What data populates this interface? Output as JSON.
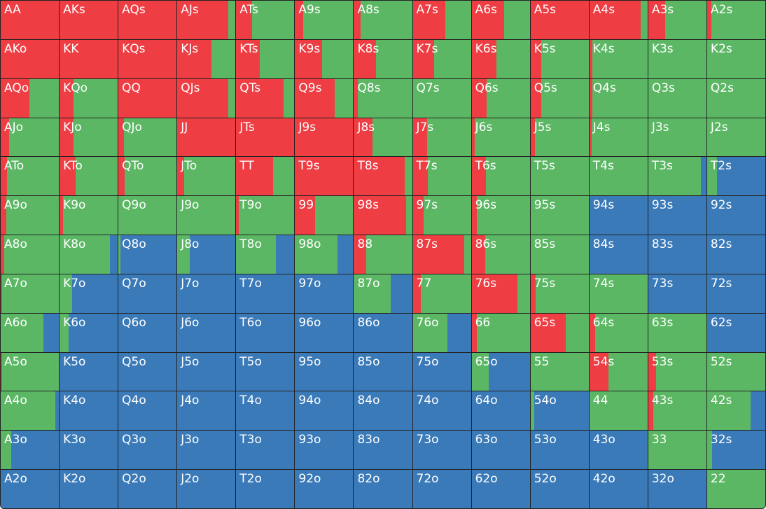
{
  "colors": {
    "raise": "#ee3d43",
    "call": "#5cb765",
    "fold": "#3b7ab8"
  },
  "hands": [
    {
      "label": "AA",
      "raise": 1.0,
      "call": 0.0
    },
    {
      "label": "AKs",
      "raise": 1.0,
      "call": 0.0
    },
    {
      "label": "AQs",
      "raise": 1.0,
      "call": 0.0
    },
    {
      "label": "AJs",
      "raise": 0.88,
      "call": 0.12
    },
    {
      "label": "ATs",
      "raise": 0.27,
      "call": 0.73
    },
    {
      "label": "A9s",
      "raise": 0.14,
      "call": 0.86
    },
    {
      "label": "A8s",
      "raise": 0.11,
      "call": 0.89
    },
    {
      "label": "A7s",
      "raise": 0.56,
      "call": 0.44
    },
    {
      "label": "A6s",
      "raise": 0.56,
      "call": 0.44
    },
    {
      "label": "A5s",
      "raise": 1.0,
      "call": 0.0
    },
    {
      "label": "A4s",
      "raise": 0.88,
      "call": 0.12
    },
    {
      "label": "A3s",
      "raise": 0.29,
      "call": 0.71
    },
    {
      "label": "A2s",
      "raise": 0.07,
      "call": 0.93
    },
    {
      "label": "AKo",
      "raise": 1.0,
      "call": 0.0
    },
    {
      "label": "KK",
      "raise": 1.0,
      "call": 0.0
    },
    {
      "label": "KQs",
      "raise": 1.0,
      "call": 0.0
    },
    {
      "label": "KJs",
      "raise": 0.59,
      "call": 0.41
    },
    {
      "label": "KTs",
      "raise": 0.4,
      "call": 0.6
    },
    {
      "label": "K9s",
      "raise": 0.46,
      "call": 0.54
    },
    {
      "label": "K8s",
      "raise": 0.38,
      "call": 0.62
    },
    {
      "label": "K7s",
      "raise": 0.37,
      "call": 0.63
    },
    {
      "label": "K6s",
      "raise": 0.43,
      "call": 0.57
    },
    {
      "label": "K5s",
      "raise": 0.18,
      "call": 0.82
    },
    {
      "label": "K4s",
      "raise": 0.05,
      "call": 0.95
    },
    {
      "label": "K3s",
      "raise": 0.0,
      "call": 1.0
    },
    {
      "label": "K2s",
      "raise": 0.0,
      "call": 1.0
    },
    {
      "label": "AQo",
      "raise": 0.49,
      "call": 0.51
    },
    {
      "label": "KQo",
      "raise": 0.24,
      "call": 0.76
    },
    {
      "label": "QQ",
      "raise": 1.0,
      "call": 0.0
    },
    {
      "label": "QJs",
      "raise": 0.88,
      "call": 0.12
    },
    {
      "label": "QTs",
      "raise": 0.82,
      "call": 0.18
    },
    {
      "label": "Q9s",
      "raise": 0.68,
      "call": 0.32
    },
    {
      "label": "Q8s",
      "raise": 0.07,
      "call": 0.93
    },
    {
      "label": "Q7s",
      "raise": 0.0,
      "call": 1.0
    },
    {
      "label": "Q6s",
      "raise": 0.26,
      "call": 0.74
    },
    {
      "label": "Q5s",
      "raise": 0.18,
      "call": 0.82
    },
    {
      "label": "Q4s",
      "raise": 0.05,
      "call": 0.95
    },
    {
      "label": "Q3s",
      "raise": 0.0,
      "call": 1.0
    },
    {
      "label": "Q2s",
      "raise": 0.0,
      "call": 1.0
    },
    {
      "label": "AJo",
      "raise": 0.15,
      "call": 0.85
    },
    {
      "label": "KJo",
      "raise": 0.24,
      "call": 0.76
    },
    {
      "label": "QJo",
      "raise": 0.1,
      "call": 0.9
    },
    {
      "label": "JJ",
      "raise": 1.0,
      "call": 0.0
    },
    {
      "label": "JTs",
      "raise": 1.0,
      "call": 0.0
    },
    {
      "label": "J9s",
      "raise": 1.0,
      "call": 0.0
    },
    {
      "label": "J8s",
      "raise": 0.32,
      "call": 0.68
    },
    {
      "label": "J7s",
      "raise": 0.25,
      "call": 0.75
    },
    {
      "label": "J6s",
      "raise": 0.05,
      "call": 0.95
    },
    {
      "label": "J5s",
      "raise": 0.07,
      "call": 0.93
    },
    {
      "label": "J4s",
      "raise": 0.04,
      "call": 0.96
    },
    {
      "label": "J3s",
      "raise": 0.0,
      "call": 1.0
    },
    {
      "label": "J2s",
      "raise": 0.0,
      "call": 1.0
    },
    {
      "label": "ATo",
      "raise": 0.11,
      "call": 0.89
    },
    {
      "label": "KTo",
      "raise": 0.28,
      "call": 0.72
    },
    {
      "label": "QTo",
      "raise": 0.11,
      "call": 0.89
    },
    {
      "label": "JTo",
      "raise": 0.12,
      "call": 0.88
    },
    {
      "label": "TT",
      "raise": 0.64,
      "call": 0.36
    },
    {
      "label": "T9s",
      "raise": 1.0,
      "call": 0.0
    },
    {
      "label": "T8s",
      "raise": 0.87,
      "call": 0.13
    },
    {
      "label": "T7s",
      "raise": 0.26,
      "call": 0.74
    },
    {
      "label": "T6s",
      "raise": 0.24,
      "call": 0.76
    },
    {
      "label": "T5s",
      "raise": 0.0,
      "call": 1.0
    },
    {
      "label": "T4s",
      "raise": 0.0,
      "call": 1.0
    },
    {
      "label": "T3s",
      "raise": 0.0,
      "call": 0.91
    },
    {
      "label": "T2s",
      "raise": 0.0,
      "call": 0.17
    },
    {
      "label": "A9o",
      "raise": 0.1,
      "call": 0.9
    },
    {
      "label": "K9o",
      "raise": 0.06,
      "call": 0.94
    },
    {
      "label": "Q9o",
      "raise": 0.0,
      "call": 1.0
    },
    {
      "label": "J9o",
      "raise": 0.0,
      "call": 1.0
    },
    {
      "label": "T9o",
      "raise": 0.05,
      "call": 0.95
    },
    {
      "label": "99",
      "raise": 0.34,
      "call": 0.66
    },
    {
      "label": "98s",
      "raise": 0.9,
      "call": 0.1
    },
    {
      "label": "97s",
      "raise": 0.19,
      "call": 0.81
    },
    {
      "label": "96s",
      "raise": 0.09,
      "call": 0.91
    },
    {
      "label": "95s",
      "raise": 0.0,
      "call": 1.0
    },
    {
      "label": "94s",
      "raise": 0.0,
      "call": 0.0
    },
    {
      "label": "93s",
      "raise": 0.0,
      "call": 0.0
    },
    {
      "label": "92s",
      "raise": 0.0,
      "call": 0.0
    },
    {
      "label": "A8o",
      "raise": 0.06,
      "call": 0.94
    },
    {
      "label": "K8o",
      "raise": 0.0,
      "call": 0.86
    },
    {
      "label": "Q8o",
      "raise": 0.0,
      "call": 0.04
    },
    {
      "label": "J8o",
      "raise": 0.0,
      "call": 0.22
    },
    {
      "label": "T8o",
      "raise": 0.0,
      "call": 0.68
    },
    {
      "label": "98o",
      "raise": 0.0,
      "call": 0.73
    },
    {
      "label": "88",
      "raise": 0.21,
      "call": 0.79
    },
    {
      "label": "87s",
      "raise": 0.88,
      "call": 0.12
    },
    {
      "label": "86s",
      "raise": 0.23,
      "call": 0.77
    },
    {
      "label": "85s",
      "raise": 0.0,
      "call": 1.0
    },
    {
      "label": "84s",
      "raise": 0.0,
      "call": 0.0
    },
    {
      "label": "83s",
      "raise": 0.0,
      "call": 0.0
    },
    {
      "label": "82s",
      "raise": 0.0,
      "call": 0.0
    },
    {
      "label": "A7o",
      "raise": 0.02,
      "call": 0.98
    },
    {
      "label": "K7o",
      "raise": 0.0,
      "call": 0.22
    },
    {
      "label": "Q7o",
      "raise": 0.0,
      "call": 0.0
    },
    {
      "label": "J7o",
      "raise": 0.0,
      "call": 0.0
    },
    {
      "label": "T7o",
      "raise": 0.0,
      "call": 0.0
    },
    {
      "label": "97o",
      "raise": 0.0,
      "call": 0.0
    },
    {
      "label": "87o",
      "raise": 0.0,
      "call": 0.63
    },
    {
      "label": "77",
      "raise": 0.14,
      "call": 0.86
    },
    {
      "label": "76s",
      "raise": 0.79,
      "call": 0.21
    },
    {
      "label": "75s",
      "raise": 0.09,
      "call": 0.91
    },
    {
      "label": "74s",
      "raise": 0.0,
      "call": 1.0
    },
    {
      "label": "73s",
      "raise": 0.0,
      "call": 0.0
    },
    {
      "label": "72s",
      "raise": 0.0,
      "call": 0.0
    },
    {
      "label": "A6o",
      "raise": 0.0,
      "call": 0.74
    },
    {
      "label": "K6o",
      "raise": 0.0,
      "call": 0.15
    },
    {
      "label": "Q6o",
      "raise": 0.0,
      "call": 0.0
    },
    {
      "label": "J6o",
      "raise": 0.0,
      "call": 0.0
    },
    {
      "label": "T6o",
      "raise": 0.0,
      "call": 0.0
    },
    {
      "label": "96o",
      "raise": 0.0,
      "call": 0.0
    },
    {
      "label": "86o",
      "raise": 0.0,
      "call": 0.0
    },
    {
      "label": "76o",
      "raise": 0.0,
      "call": 0.6
    },
    {
      "label": "66",
      "raise": 0.09,
      "call": 0.91
    },
    {
      "label": "65s",
      "raise": 0.6,
      "call": 0.4
    },
    {
      "label": "64s",
      "raise": 0.1,
      "call": 0.9
    },
    {
      "label": "63s",
      "raise": 0.0,
      "call": 1.0
    },
    {
      "label": "62s",
      "raise": 0.0,
      "call": 0.0
    },
    {
      "label": "A5o",
      "raise": 0.03,
      "call": 0.97
    },
    {
      "label": "K5o",
      "raise": 0.0,
      "call": 0.0
    },
    {
      "label": "Q5o",
      "raise": 0.0,
      "call": 0.0
    },
    {
      "label": "J5o",
      "raise": 0.0,
      "call": 0.0
    },
    {
      "label": "T5o",
      "raise": 0.0,
      "call": 0.0
    },
    {
      "label": "95o",
      "raise": 0.0,
      "call": 0.0
    },
    {
      "label": "85o",
      "raise": 0.0,
      "call": 0.0
    },
    {
      "label": "75o",
      "raise": 0.0,
      "call": 0.0
    },
    {
      "label": "65o",
      "raise": 0.0,
      "call": 0.29
    },
    {
      "label": "55",
      "raise": 0.0,
      "call": 1.0
    },
    {
      "label": "54s",
      "raise": 0.33,
      "call": 0.67
    },
    {
      "label": "53s",
      "raise": 0.14,
      "call": 0.86
    },
    {
      "label": "52s",
      "raise": 0.0,
      "call": 1.0
    },
    {
      "label": "A4o",
      "raise": 0.0,
      "call": 0.94
    },
    {
      "label": "K4o",
      "raise": 0.0,
      "call": 0.0
    },
    {
      "label": "Q4o",
      "raise": 0.0,
      "call": 0.0
    },
    {
      "label": "J4o",
      "raise": 0.0,
      "call": 0.0
    },
    {
      "label": "T4o",
      "raise": 0.0,
      "call": 0.0
    },
    {
      "label": "94o",
      "raise": 0.0,
      "call": 0.0
    },
    {
      "label": "84o",
      "raise": 0.0,
      "call": 0.0
    },
    {
      "label": "74o",
      "raise": 0.0,
      "call": 0.0
    },
    {
      "label": "64o",
      "raise": 0.0,
      "call": 0.0
    },
    {
      "label": "54o",
      "raise": 0.0,
      "call": 0.06
    },
    {
      "label": "44",
      "raise": 0.0,
      "call": 1.0
    },
    {
      "label": "43s",
      "raise": 0.09,
      "call": 0.91
    },
    {
      "label": "42s",
      "raise": 0.0,
      "call": 0.75
    },
    {
      "label": "A3o",
      "raise": 0.0,
      "call": 0.18
    },
    {
      "label": "K3o",
      "raise": 0.0,
      "call": 0.0
    },
    {
      "label": "Q3o",
      "raise": 0.0,
      "call": 0.0
    },
    {
      "label": "J3o",
      "raise": 0.0,
      "call": 0.0
    },
    {
      "label": "T3o",
      "raise": 0.0,
      "call": 0.0
    },
    {
      "label": "93o",
      "raise": 0.0,
      "call": 0.0
    },
    {
      "label": "83o",
      "raise": 0.0,
      "call": 0.0
    },
    {
      "label": "73o",
      "raise": 0.0,
      "call": 0.0
    },
    {
      "label": "63o",
      "raise": 0.0,
      "call": 0.0
    },
    {
      "label": "53o",
      "raise": 0.0,
      "call": 0.0
    },
    {
      "label": "43o",
      "raise": 0.0,
      "call": 0.0
    },
    {
      "label": "33",
      "raise": 0.0,
      "call": 1.0
    },
    {
      "label": "32s",
      "raise": 0.0,
      "call": 0.09
    },
    {
      "label": "A2o",
      "raise": 0.0,
      "call": 0.0
    },
    {
      "label": "K2o",
      "raise": 0.0,
      "call": 0.0
    },
    {
      "label": "Q2o",
      "raise": 0.0,
      "call": 0.0
    },
    {
      "label": "J2o",
      "raise": 0.0,
      "call": 0.0
    },
    {
      "label": "T2o",
      "raise": 0.0,
      "call": 0.0
    },
    {
      "label": "92o",
      "raise": 0.0,
      "call": 0.0
    },
    {
      "label": "82o",
      "raise": 0.0,
      "call": 0.0
    },
    {
      "label": "72o",
      "raise": 0.0,
      "call": 0.0
    },
    {
      "label": "62o",
      "raise": 0.0,
      "call": 0.0
    },
    {
      "label": "52o",
      "raise": 0.0,
      "call": 0.0
    },
    {
      "label": "42o",
      "raise": 0.0,
      "call": 0.0
    },
    {
      "label": "32o",
      "raise": 0.0,
      "call": 0.0
    },
    {
      "label": "22",
      "raise": 0.0,
      "call": 1.0
    }
  ]
}
